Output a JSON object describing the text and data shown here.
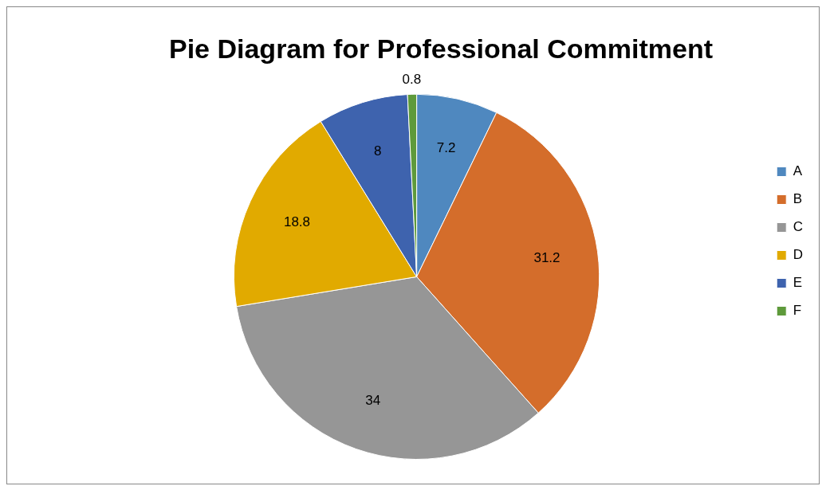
{
  "chart_data": {
    "type": "pie",
    "title": "Pie Diagram for Professional Commitment",
    "categories": [
      "A",
      "B",
      "C",
      "D",
      "E",
      "F"
    ],
    "values": [
      7.2,
      31.2,
      34,
      18.8,
      8,
      0.8
    ],
    "colors": [
      "#4f88bf",
      "#d46d2b",
      "#969696",
      "#e1aa00",
      "#3e63ae",
      "#5e9a3b"
    ],
    "data_labels": true,
    "legend": "right"
  }
}
